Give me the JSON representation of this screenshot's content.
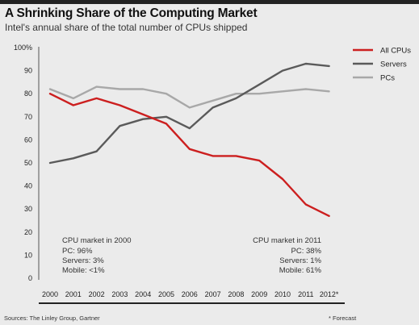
{
  "chart_data": {
    "type": "line",
    "title": "A Shrinking Share of the Computing Market",
    "subtitle": "Intel's annual share of the total number of CPUs shipped",
    "x": [
      "2000",
      "2001",
      "2002",
      "2003",
      "2004",
      "2005",
      "2006",
      "2007",
      "2008",
      "2009",
      "2010",
      "2011",
      "2012*"
    ],
    "ylim": [
      0,
      100
    ],
    "yticks": [
      "0",
      "10",
      "20",
      "30",
      "40",
      "50",
      "60",
      "70",
      "80",
      "90",
      "100%"
    ],
    "grid": false,
    "legend_position": "top-right",
    "series": [
      {
        "name": "All CPUs",
        "color": "#cc1f1f",
        "values": [
          80,
          75,
          78,
          75,
          71,
          67,
          56,
          53,
          53,
          51,
          43,
          32,
          27
        ]
      },
      {
        "name": "Servers",
        "color": "#5a5a5a",
        "values": [
          50,
          52,
          55,
          66,
          69,
          70,
          65,
          74,
          78,
          84,
          90,
          93,
          92
        ]
      },
      {
        "name": "PCs",
        "color": "#a8a8a8",
        "values": [
          82,
          78,
          83,
          82,
          82,
          80,
          74,
          77,
          80,
          80,
          81,
          82,
          81
        ]
      }
    ],
    "annotations": {
      "left": [
        "CPU market in 2000",
        "PC: 96%",
        "Servers: 3%",
        "Mobile: <1%"
      ],
      "right": [
        "CPU market in 2011",
        "PC: 38%",
        "Servers: 1%",
        "Mobile: 61%"
      ]
    },
    "source": "Sources: The Linley Group, Gartner",
    "footnote": "* Forecast"
  }
}
